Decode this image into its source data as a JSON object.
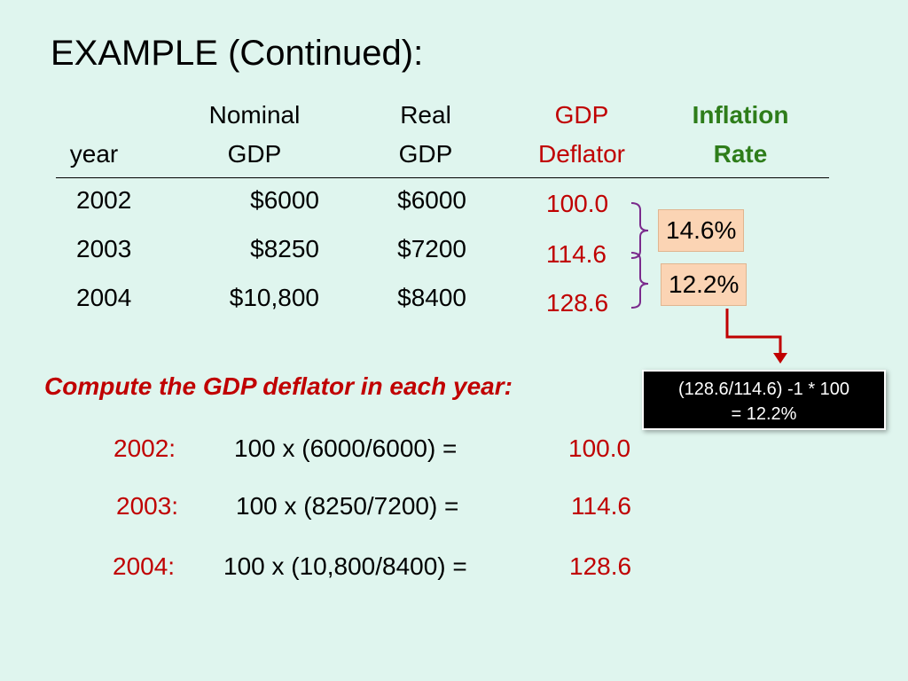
{
  "slide": {
    "title": "EXAMPLE (Continued):"
  },
  "table": {
    "headers": {
      "year": "year",
      "nominal_gdp": [
        "Nominal",
        "GDP"
      ],
      "real_gdp": [
        "Real",
        "GDP"
      ],
      "gdp_deflator": [
        "GDP",
        "Deflator"
      ],
      "inflation_rate": [
        "Inflation",
        "Rate"
      ]
    },
    "rows": [
      {
        "year": "2002",
        "nominal_gdp": "$6000",
        "real_gdp": "$6000",
        "deflator": "100.0"
      },
      {
        "year": "2003",
        "nominal_gdp": "$8250",
        "real_gdp": "$7200",
        "deflator": "114.6"
      },
      {
        "year": "2004",
        "nominal_gdp": "$10,800",
        "real_gdp": "$8400",
        "deflator": "128.6"
      }
    ],
    "inflation_rates": [
      "14.6%",
      "12.2%"
    ]
  },
  "callout": {
    "lines": [
      "(128.6/114.6) -1 * 100",
      "= 12.2%"
    ]
  },
  "prompt": "Compute the GDP deflator in each year:",
  "calculations": [
    {
      "label": "2002:",
      "formula": "100 x (6000/6000)  =",
      "result": "100.0"
    },
    {
      "label": "2003:",
      "formula": "100 x (8250/7200)  =",
      "result": "114.6"
    },
    {
      "label": "2004:",
      "formula": "100 x (10,800/8400) =",
      "result": "128.6"
    }
  ],
  "colors": {
    "background": "#dff5ee",
    "accent_red": "#c00000",
    "accent_green": "#2e7d1a",
    "badge_fill": "#fbd4b4",
    "bracket_purple": "#7a2a8c"
  }
}
